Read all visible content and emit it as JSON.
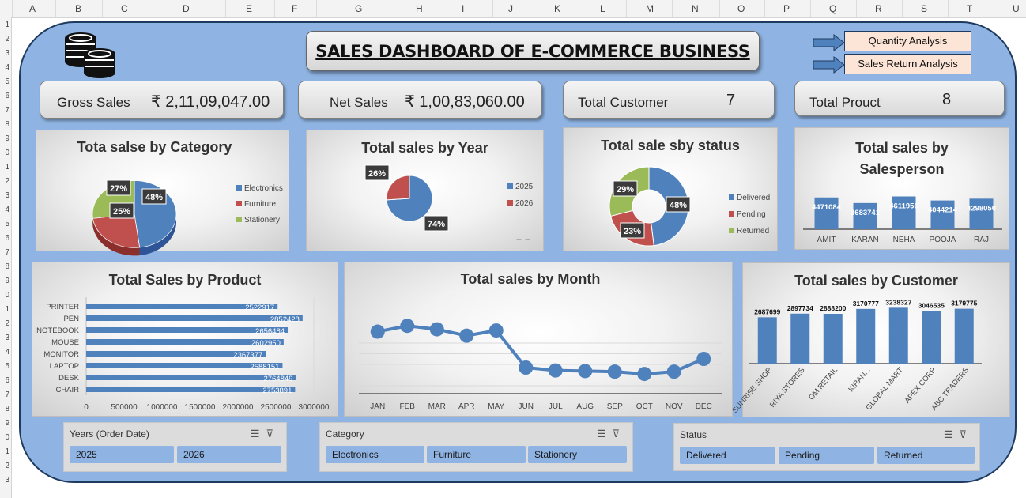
{
  "columns": [
    "A",
    "B",
    "C",
    "D",
    "E",
    "F",
    "G",
    "H",
    "I",
    "J",
    "K",
    "L",
    "M",
    "N",
    "O",
    "P",
    "Q",
    "R",
    "S",
    "T",
    "U"
  ],
  "rows": [
    "1",
    "2",
    "3",
    "4",
    "5",
    "6",
    "7",
    "8",
    "9",
    "0",
    "1",
    "2",
    "3",
    "4",
    "5",
    "6",
    "7",
    "8",
    "9",
    "0",
    "1",
    "2",
    "3",
    "4",
    "5",
    "6",
    "7",
    "8",
    "9",
    "0",
    "1",
    "2",
    "3"
  ],
  "header": {
    "title": "SALES DASHBOARD OF E-COMMERCE BUSINESS"
  },
  "nav": {
    "quantity": "Quantity Analysis",
    "returns": "Sales Return Analysis"
  },
  "kpis": {
    "gross_label": "Gross Sales",
    "gross_value": "₹ 2,11,09,047.00",
    "net_label": "Net Sales",
    "net_value": "₹ 1,00,83,060.00",
    "cust_label": "Total Customer",
    "cust_value": "7",
    "prod_label": "Total Prouct",
    "prod_value": "8"
  },
  "colors": {
    "blue": "#4f81bd",
    "red": "#c0504d",
    "green": "#9bbb59",
    "board": "#8fb4e3",
    "nav": "#fce4d6"
  },
  "chart_data": [
    {
      "type": "pie",
      "title": "Tota salse by Category",
      "categories": [
        "Electronics",
        "Furniture",
        "Stationery"
      ],
      "values": [
        48,
        25,
        27
      ],
      "labels": [
        "48%",
        "25%",
        "27%"
      ],
      "legend": "right"
    },
    {
      "type": "pie",
      "title": "Total sales by Year",
      "categories": [
        "2025",
        "2026"
      ],
      "values": [
        74,
        26
      ],
      "labels": [
        "74%",
        "26%"
      ],
      "legend": "right"
    },
    {
      "type": "pie",
      "title": "Total sale sby status",
      "categories": [
        "Delivered",
        "Pending",
        "Returned"
      ],
      "values": [
        48,
        23,
        29
      ],
      "labels": [
        "48%",
        "23%",
        "29%"
      ],
      "legend": "right"
    },
    {
      "type": "bar",
      "title": "Total sales by Salesperson",
      "categories": [
        "AMIT",
        "KARAN",
        "NEHA",
        "POOJA",
        "RAJ"
      ],
      "values": [
        4471084,
        3683741,
        4611956,
        4044214,
        4298050
      ],
      "labels": [
        "4471084",
        "3683741",
        "4611956",
        "4044214",
        "4298050"
      ]
    },
    {
      "type": "bar",
      "orientation": "horizontal",
      "title": "Total Sales by Product",
      "categories": [
        "PRINTER",
        "PEN",
        "NOTEBOOK",
        "MOUSE",
        "MONITOR",
        "LAPTOP",
        "DESK",
        "CHAIR"
      ],
      "values": [
        2522917,
        2852428,
        2656484,
        2602950,
        2367377,
        2588151,
        2764849,
        2753891
      ],
      "labels": [
        "2522917",
        "2852428",
        "2656484",
        "2602950",
        "2367377",
        "2588151",
        "2764849",
        "2753891"
      ],
      "xticks": [
        "0",
        "500000",
        "1000000",
        "1500000",
        "2000000",
        "2500000",
        "3000000"
      ],
      "xlim": [
        0,
        3000000
      ]
    },
    {
      "type": "line",
      "title": "Total sales by Month",
      "categories": [
        "JAN",
        "FEB",
        "MAR",
        "APR",
        "MAY",
        "JUN",
        "JUL",
        "AUG",
        "SEP",
        "OCT",
        "NOV",
        "DEC"
      ],
      "values": [
        2070000,
        2170000,
        2110000,
        2000000,
        2090000,
        1450000,
        1400000,
        1390000,
        1380000,
        1340000,
        1380000,
        1600000
      ],
      "ylim": [
        1000000,
        2500000
      ],
      "grid": true
    },
    {
      "type": "bar",
      "title": "Total sales by Customer",
      "categories": [
        "SUNRISE SHOP",
        "RIYA STORES",
        "OM RETAIL",
        "KIRAN...",
        "GLOBAL MART",
        "APEX CORP",
        "ABC TRADERS"
      ],
      "values": [
        2687699,
        2897734,
        2888200,
        3170777,
        3238327,
        3046535,
        3179775
      ],
      "labels": [
        "2687699",
        "2897734",
        "2888200",
        "3170777",
        "3238327",
        "3046535",
        "3179775"
      ]
    }
  ],
  "slicers": {
    "years": {
      "title": "Years (Order Date)",
      "items": [
        "2025",
        "2026"
      ]
    },
    "category": {
      "title": "Category",
      "items": [
        "Electronics",
        "Furniture",
        "Stationery"
      ]
    },
    "status": {
      "title": "Status",
      "items": [
        "Delivered",
        "Pending",
        "Returned"
      ]
    }
  },
  "icons": {
    "coins": "coins-icon",
    "arrow": "arrow-right-icon",
    "multiselect": "multiselect-icon",
    "clear": "clear-filter-icon"
  }
}
